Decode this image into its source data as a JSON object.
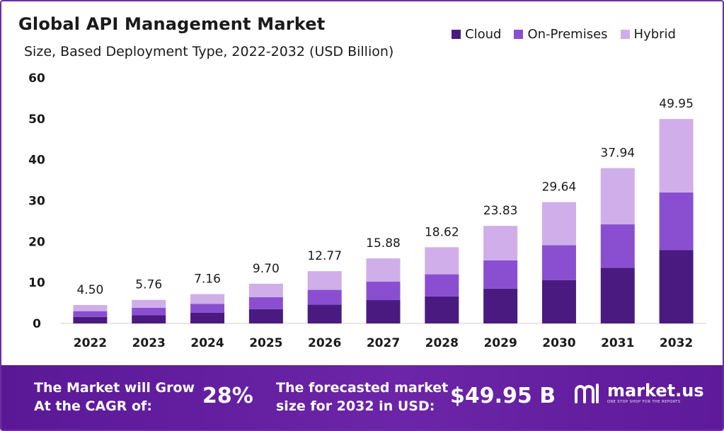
{
  "title": "Global API Management Market",
  "subtitle": "Size, Based Deployment Type, 2022-2032 (USD Billion)",
  "legend": [
    {
      "label": "Cloud",
      "color": "#4a1a80"
    },
    {
      "label": "On-Premises",
      "color": "#8a4fd0"
    },
    {
      "label": "Hybrid",
      "color": "#d0aeea"
    }
  ],
  "footer": {
    "cagr_label": "The Market will Grow At the CAGR of:",
    "cagr_value": "28%",
    "forecast_label": "The forecasted market size for 2032 in USD:",
    "forecast_value": "$49.95 B",
    "brand_name": "market.us",
    "brand_tagline": "ONE STOP SHOP FOR THE REPORTS"
  },
  "chart_data": {
    "type": "bar",
    "stacked": true,
    "title": "Global API Management Market",
    "subtitle": "Size, Based Deployment Type, 2022-2032 (USD Billion)",
    "xlabel": "",
    "ylabel": "",
    "ylim": [
      0,
      60
    ],
    "yticks": [
      0,
      10,
      20,
      30,
      40,
      50,
      60
    ],
    "grid": false,
    "legend_position": "top-right",
    "categories": [
      "2022",
      "2023",
      "2024",
      "2025",
      "2026",
      "2027",
      "2028",
      "2029",
      "2030",
      "2031",
      "2032"
    ],
    "totals": [
      "4.50",
      "5.76",
      "7.16",
      "9.70",
      "12.77",
      "15.88",
      "18.62",
      "23.83",
      "29.64",
      "37.94",
      "49.95"
    ],
    "series": [
      {
        "name": "Cloud",
        "color": "#4a1a80",
        "values": [
          1.6,
          2.0,
          2.6,
          3.5,
          4.6,
          5.7,
          6.6,
          8.5,
          10.6,
          13.6,
          17.9
        ]
      },
      {
        "name": "On-Premises",
        "color": "#8a4fd0",
        "values": [
          1.4,
          1.8,
          2.2,
          2.9,
          3.6,
          4.5,
          5.4,
          6.9,
          8.5,
          10.6,
          14.1
        ]
      },
      {
        "name": "Hybrid",
        "color": "#d0aeea",
        "values": [
          1.5,
          1.96,
          2.36,
          3.3,
          4.57,
          5.68,
          6.62,
          8.43,
          10.54,
          13.74,
          17.95
        ]
      }
    ]
  }
}
